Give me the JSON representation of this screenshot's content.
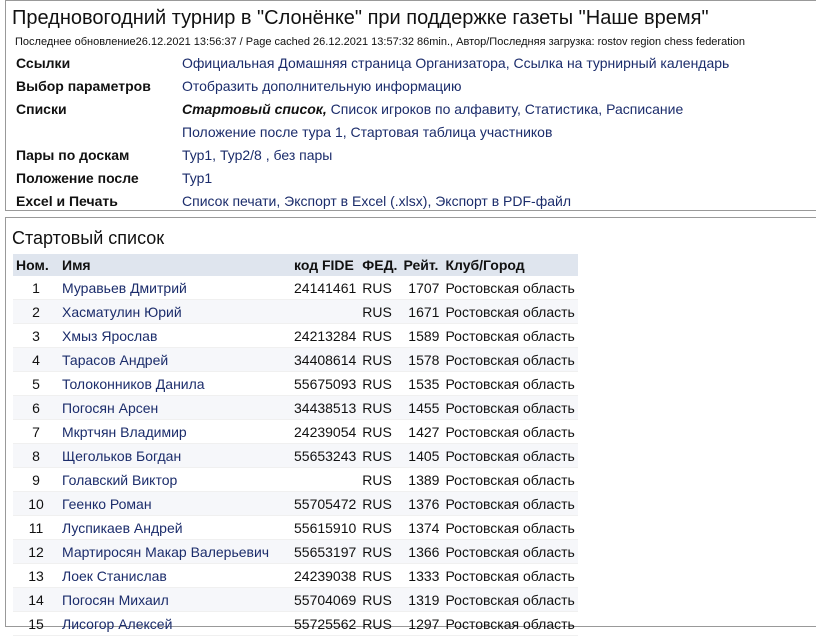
{
  "header": {
    "title": "Предновогодний турнир в \"Слонёнке\" при поддержке газеты \"Наше время\"",
    "updated": "Последнее обновление26.12.2021 13:56:37 / Page cached 26.12.2021 13:57:32 86min., Автор/Последняя загрузка: rostov region chess federation"
  },
  "info": [
    {
      "label": "Ссылки",
      "lines": [
        [
          "Официальная Домашняя страница Организатора,",
          "Ссылка на турнирный календарь"
        ]
      ]
    },
    {
      "label": "Выбор параметров",
      "lines": [
        [
          "Отобразить дополнительную информацию"
        ]
      ]
    },
    {
      "label": "Списки",
      "lines": [
        [
          "Стартовый список,",
          "Список игроков по алфавиту,",
          "Статистика,",
          "Расписание"
        ],
        [
          "Положение после тура 1,",
          "Стартовая таблица участников"
        ]
      ]
    },
    {
      "label": "Пары по доскам",
      "lines": [
        [
          "Тур1,",
          "Тур2/8 ,",
          "без пары"
        ]
      ]
    },
    {
      "label": "Положение после",
      "lines": [
        [
          "Тур1"
        ]
      ]
    },
    {
      "label": "Excel и Печать",
      "lines": [
        [
          "Список печати,",
          "Экспорт в Excel (.xlsx),",
          "Экспорт в PDF-файл"
        ]
      ]
    }
  ],
  "table": {
    "title": "Стартовый список",
    "headers": [
      "Ном.",
      "Имя",
      "код FIDE",
      "ФЕД.",
      "Рейт.",
      "Клуб/Город"
    ],
    "rows": [
      [
        1,
        "Муравьев Дмитрий",
        "24141461",
        "RUS",
        1707,
        "Ростовская область"
      ],
      [
        2,
        "Хасматулин Юрий",
        null,
        "RUS",
        1671,
        "Ростовская область"
      ],
      [
        3,
        "Хмыз Ярослав",
        "24213284",
        "RUS",
        1589,
        "Ростовская область"
      ],
      [
        4,
        "Тарасов Андрей",
        "34408614",
        "RUS",
        1578,
        "Ростовская область"
      ],
      [
        5,
        "Толоконников Данила",
        "55675093",
        "RUS",
        1535,
        "Ростовская область"
      ],
      [
        6,
        "Погосян Арсен",
        "34438513",
        "RUS",
        1455,
        "Ростовская область"
      ],
      [
        7,
        "Мкртчян Владимир",
        "24239054",
        "RUS",
        1427,
        "Ростовская область"
      ],
      [
        8,
        "Щегольков Богдан",
        "55653243",
        "RUS",
        1405,
        "Ростовская область"
      ],
      [
        9,
        "Голавский Виктор",
        null,
        "RUS",
        1389,
        "Ростовская область"
      ],
      [
        10,
        "Геенко Роман",
        "55705472",
        "RUS",
        1376,
        "Ростовская область"
      ],
      [
        11,
        "Луспикаев Андрей",
        "55615910",
        "RUS",
        1374,
        "Ростовская область"
      ],
      [
        12,
        "Мартиросян Макар Валерьевич",
        "55653197",
        "RUS",
        1366,
        "Ростовская область"
      ],
      [
        13,
        "Лоек Станислав",
        "24239038",
        "RUS",
        1333,
        "Ростовская область"
      ],
      [
        14,
        "Погосян Михаил",
        "55704069",
        "RUS",
        1319,
        "Ростовская область"
      ],
      [
        15,
        "Лисогор Алексей",
        "55725562",
        "RUS",
        1297,
        "Ростовская область"
      ]
    ]
  }
}
